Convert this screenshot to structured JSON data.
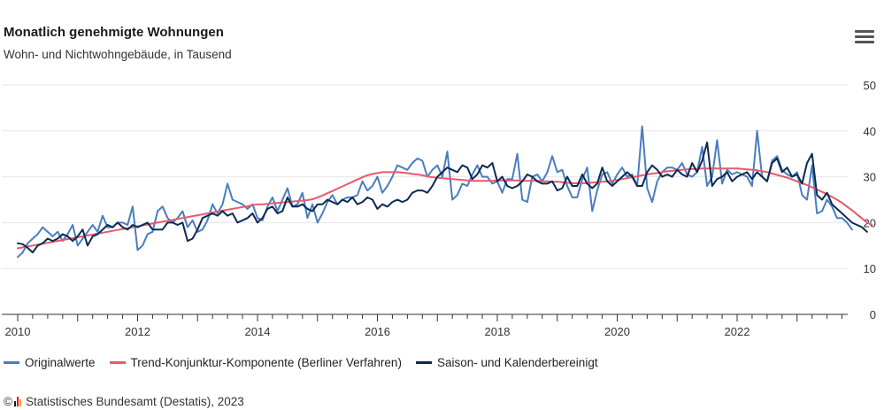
{
  "header": {
    "title": "Monatlich genehmigte Wohnungen",
    "subtitle": "Wohn- und Nichtwohngebäude, in Tausend"
  },
  "menu": {
    "icon": "hamburger-menu-icon"
  },
  "credits": {
    "copyright_symbol": "©",
    "text": "Statistisches Bundesamt (Destatis), 2023",
    "logo_colors": [
      "#1a1a1a",
      "#e30613",
      "#f7a600"
    ]
  },
  "chart_data": {
    "type": "line",
    "x_start": "2010-01",
    "x_interval": "month",
    "x_ticks": [
      "2010",
      "2012",
      "2014",
      "2016",
      "2018",
      "2020",
      "2022"
    ],
    "ylim": [
      0,
      50
    ],
    "y_ticks": [
      "0",
      "10",
      "20",
      "30",
      "40",
      "50"
    ],
    "y_axis_position": "right",
    "grid": true,
    "legend_position": "bottom",
    "series": [
      {
        "name": "Originalwerte",
        "color": "#4a7dbf",
        "values": [
          12.5,
          13.5,
          15.5,
          16.5,
          17.5,
          19,
          18,
          17,
          18,
          16,
          17.5,
          19.5,
          15,
          16.5,
          18,
          19.5,
          18,
          21.5,
          19,
          19,
          20,
          20,
          19.5,
          23.5,
          14,
          15,
          17.5,
          18,
          22.5,
          23.5,
          21,
          20,
          21,
          22.5,
          19,
          20.5,
          18,
          18.5,
          20.5,
          24,
          22,
          24,
          28.5,
          25,
          24.5,
          24,
          23,
          24,
          21,
          20.5,
          23.5,
          25.5,
          22.5,
          25,
          27.5,
          23.5,
          24,
          26.5,
          21,
          24,
          20,
          22,
          24.5,
          26,
          24,
          25,
          25.5,
          25.5,
          26,
          29,
          27,
          28,
          30,
          26.5,
          28,
          30,
          32.5,
          32,
          31.5,
          33,
          34,
          33.5,
          30,
          31.5,
          32.5,
          30,
          35.5,
          25,
          26,
          28.5,
          28,
          30.5,
          32.5,
          30,
          30,
          28.5,
          29,
          26.5,
          29.5,
          29.5,
          35,
          25,
          24.5,
          30,
          30.5,
          29,
          31,
          34.5,
          31,
          31.5,
          28,
          25.5,
          25.5,
          29.5,
          32,
          22.5,
          27,
          30.5,
          31,
          28.5,
          30.5,
          32,
          30,
          30.5,
          28,
          41,
          27.5,
          24.5,
          29,
          31,
          32,
          32,
          31.5,
          33,
          30.5,
          30,
          31,
          36.5,
          28,
          30,
          38,
          28.5,
          31.5,
          30.5,
          31,
          30.5,
          30,
          28,
          40,
          30,
          29,
          33.5,
          34.5,
          31.5,
          30.5,
          30,
          31,
          26,
          25,
          32.5,
          22,
          22.5,
          25,
          23.5,
          21,
          21,
          20,
          18.5
        ]
      },
      {
        "name": "Trend-Konjunktur-Komponente (Berliner Verfahren)",
        "color": "#e8596b",
        "values": [
          14.4,
          14.6,
          14.8,
          15,
          15.2,
          15.4,
          15.6,
          15.8,
          16,
          16.2,
          16.4,
          16.6,
          16.8,
          17,
          17.2,
          17.4,
          17.6,
          17.8,
          18,
          18.2,
          18.4,
          18.6,
          18.8,
          19,
          19.2,
          19.4,
          19.6,
          19.8,
          20,
          20.2,
          20.4,
          20.6,
          20.8,
          21,
          21.2,
          21.4,
          21.6,
          21.8,
          22,
          22.2,
          22.4,
          22.6,
          22.8,
          23,
          23.2,
          23.4,
          23.6,
          23.8,
          24,
          24,
          24.1,
          24.2,
          24.3,
          24.4,
          24.5,
          24.6,
          24.7,
          24.8,
          24.9,
          25.1,
          25.5,
          25.9,
          26.4,
          26.9,
          27.4,
          27.9,
          28.4,
          28.9,
          29.4,
          29.9,
          30.3,
          30.6,
          30.8,
          31,
          31,
          31,
          31,
          30.9,
          30.8,
          30.6,
          30.5,
          30.3,
          30.1,
          29.9,
          29.8,
          29.7,
          29.6,
          29.5,
          29.4,
          29.3,
          29.2,
          29.1,
          29.1,
          29.1,
          29.1,
          29.1,
          29.2,
          29.2,
          29.2,
          29.2,
          29.2,
          29.1,
          29.1,
          29.1,
          29.1,
          29,
          29,
          28.9,
          28.9,
          28.8,
          28.7,
          28.6,
          28.6,
          28.6,
          28.6,
          28.7,
          28.8,
          28.9,
          29,
          29.1,
          29.3,
          29.5,
          29.7,
          29.9,
          30.1,
          30.3,
          30.5,
          30.7,
          30.8,
          31,
          31.2,
          31.3,
          31.4,
          31.5,
          31.6,
          31.7,
          31.7,
          31.8,
          31.8,
          31.8,
          31.8,
          31.8,
          31.8,
          31.8,
          31.8,
          31.7,
          31.6,
          31.5,
          31.4,
          31.2,
          31,
          30.7,
          30.4,
          30.1,
          29.8,
          29.4,
          29,
          28.6,
          28.2,
          27.7,
          27.2,
          26.7,
          26.2,
          25.6,
          25,
          24.3,
          23.5,
          22.7,
          21.8,
          20.9,
          20,
          19.5
        ]
      },
      {
        "name": "Saison- und Kalenderbereinigt",
        "color": "#0c2a52",
        "values": [
          15.5,
          15.3,
          14.5,
          13.5,
          15,
          15.5,
          16.5,
          16,
          16.5,
          17.5,
          17,
          16,
          17,
          18.5,
          15,
          17,
          17.5,
          18.5,
          19.5,
          19,
          20,
          19,
          18.5,
          19.5,
          19,
          19.5,
          20,
          18.5,
          18.5,
          18.5,
          20,
          20,
          19.5,
          20,
          16,
          16.5,
          18.5,
          21,
          21.5,
          22,
          21.5,
          22.5,
          21.5,
          22,
          20,
          20.5,
          21,
          22,
          20,
          21,
          23,
          23.5,
          22,
          22.5,
          25.5,
          23.5,
          23.5,
          24,
          23,
          22.5,
          24,
          24,
          25,
          24.5,
          24,
          25,
          24.5,
          25.5,
          24,
          24.5,
          25.5,
          25,
          23,
          24,
          23.5,
          24.5,
          25,
          24.5,
          25,
          26.5,
          27,
          27,
          26.5,
          28,
          30,
          31,
          32,
          31.5,
          31,
          32.5,
          32,
          29.5,
          30.5,
          32.5,
          32,
          33,
          29,
          30,
          28,
          27.5,
          28,
          29,
          30.5,
          30,
          29,
          28.5,
          28.5,
          29,
          27,
          27.5,
          30,
          28,
          28,
          30.5,
          28.5,
          27.5,
          28.5,
          32,
          29,
          28,
          29,
          30,
          31,
          30,
          28,
          28,
          31,
          32.5,
          31.5,
          30,
          30.5,
          30,
          31.5,
          30.5,
          30,
          33,
          31,
          33.5,
          37.5,
          28,
          29.5,
          30,
          31,
          29,
          30,
          30.5,
          31,
          29.5,
          31,
          30,
          29,
          33,
          34,
          31,
          32,
          30,
          30.5,
          28.5,
          33,
          35,
          26,
          25,
          26.5,
          24,
          23,
          22,
          21,
          20,
          19.5,
          19,
          18
        ]
      }
    ]
  }
}
